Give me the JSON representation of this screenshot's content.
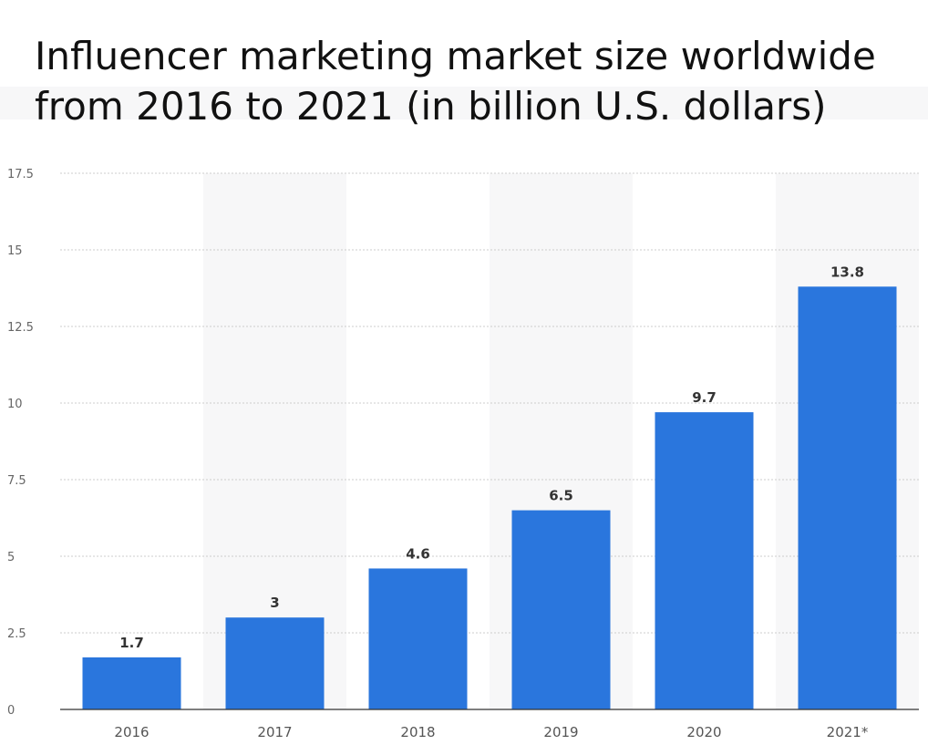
{
  "chart_data": {
    "type": "bar",
    "title_lines": [
      "Influencer marketing market size worldwide",
      "from 2016 to 2021 (in billion U.S. dollars)"
    ],
    "categories": [
      "2016",
      "2017",
      "2018",
      "2019",
      "2020",
      "2021*"
    ],
    "values": [
      1.7,
      3,
      4.6,
      6.5,
      9.7,
      13.8
    ],
    "value_labels": [
      "1.7",
      "3",
      "4.6",
      "6.5",
      "9.7",
      "13.8"
    ],
    "y_ticks": [
      0,
      2.5,
      5,
      7.5,
      10,
      12.5,
      15,
      17.5
    ],
    "y_tick_labels": [
      "0",
      "2.5",
      "5",
      "7.5",
      "10",
      "12.5",
      "15",
      "17.5"
    ],
    "ylim": [
      0,
      17.5
    ],
    "grid": true,
    "legend": "none",
    "colors": {
      "bar": "#2a76dd",
      "alt_band": "#f7f7f8",
      "grid": "#cccccc",
      "axis": "#333333"
    }
  }
}
